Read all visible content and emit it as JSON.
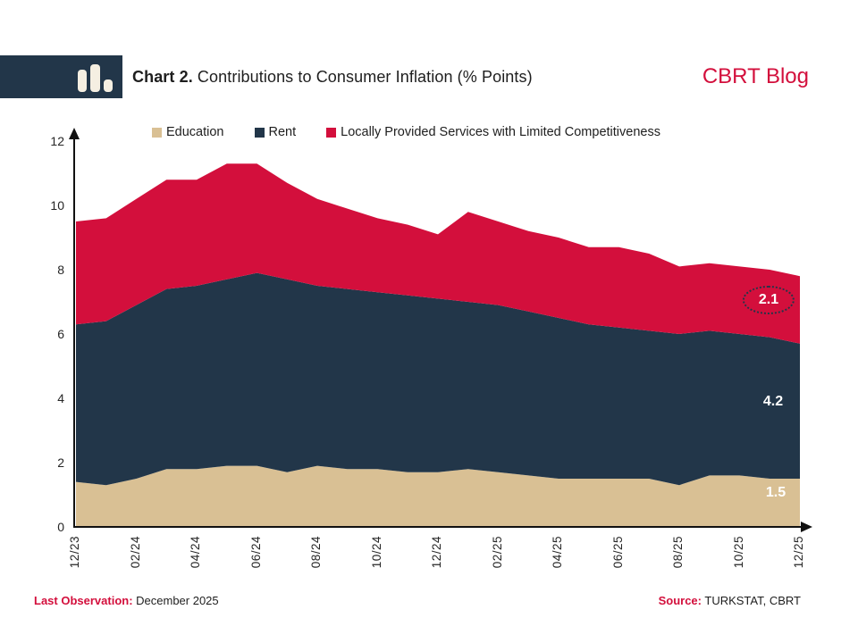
{
  "header": {
    "title_prefix": "Chart 2.",
    "title_rest": " Contributions to Consumer Inflation (% Points)",
    "brand": "CBRT Blog"
  },
  "colors": {
    "education": "#d9c094",
    "rent": "#223649",
    "services": "#d30f3c",
    "accent_red": "#d30f3c",
    "axis": "#111111",
    "logo_navy": "#223649"
  },
  "legend": [
    {
      "label": "Education",
      "color": "#d9c094"
    },
    {
      "label": "Rent",
      "color": "#223649"
    },
    {
      "label": "Locally Provided Services with Limited Competitiveness",
      "color": "#d30f3c"
    }
  ],
  "chart_data": {
    "type": "area",
    "stacked": true,
    "title": "Chart 2. Contributions to Consumer Inflation (% Points)",
    "xlabel": "",
    "ylabel": "",
    "ylim": [
      0,
      12
    ],
    "yticks": [
      0,
      2,
      4,
      6,
      8,
      10,
      12
    ],
    "grid": false,
    "legend_position": "top",
    "x": [
      "12/23",
      "01/24",
      "02/24",
      "03/24",
      "04/24",
      "05/24",
      "06/24",
      "07/24",
      "08/24",
      "09/24",
      "10/24",
      "11/24",
      "12/24",
      "01/25",
      "02/25",
      "03/25",
      "04/25",
      "05/25",
      "06/25",
      "07/25",
      "08/25",
      "09/25",
      "10/25",
      "11/25",
      "12/25"
    ],
    "x_tick_labels": [
      "12/23",
      "02/24",
      "04/24",
      "06/24",
      "08/24",
      "10/24",
      "12/24",
      "02/25",
      "04/25",
      "06/25",
      "08/25",
      "10/25",
      "12/25"
    ],
    "series": [
      {
        "name": "Education",
        "color": "#d9c094",
        "values": [
          1.4,
          1.3,
          1.5,
          1.8,
          1.8,
          1.9,
          1.9,
          1.7,
          1.9,
          1.8,
          1.8,
          1.7,
          1.7,
          1.8,
          1.7,
          1.6,
          1.5,
          1.5,
          1.5,
          1.5,
          1.3,
          1.6,
          1.6,
          1.5,
          1.5
        ]
      },
      {
        "name": "Rent",
        "color": "#223649",
        "values": [
          4.9,
          5.1,
          5.4,
          5.6,
          5.7,
          5.8,
          6.0,
          6.0,
          5.6,
          5.6,
          5.5,
          5.5,
          5.4,
          5.2,
          5.2,
          5.1,
          5.0,
          4.8,
          4.7,
          4.6,
          4.7,
          4.5,
          4.4,
          4.4,
          4.2
        ]
      },
      {
        "name": "Locally Provided Services with Limited Competitiveness",
        "color": "#d30f3c",
        "values": [
          3.2,
          3.2,
          3.3,
          3.4,
          3.3,
          3.6,
          3.4,
          3.0,
          2.7,
          2.5,
          2.3,
          2.2,
          2.0,
          2.8,
          2.6,
          2.5,
          2.5,
          2.4,
          2.5,
          2.4,
          2.1,
          2.1,
          2.1,
          2.1,
          2.1
        ]
      }
    ],
    "end_labels": [
      {
        "series": "Locally Provided Services with Limited Competitiveness",
        "text": "2.1",
        "circled": true
      },
      {
        "series": "Rent",
        "text": "4.2",
        "circled": false
      },
      {
        "series": "Education",
        "text": "1.5",
        "circled": false
      }
    ]
  },
  "footer": {
    "last_obs_label": "Last Observation:",
    "last_obs_value": " December 2025",
    "source_label": "Source:",
    "source_value": " TURKSTAT, CBRT"
  }
}
